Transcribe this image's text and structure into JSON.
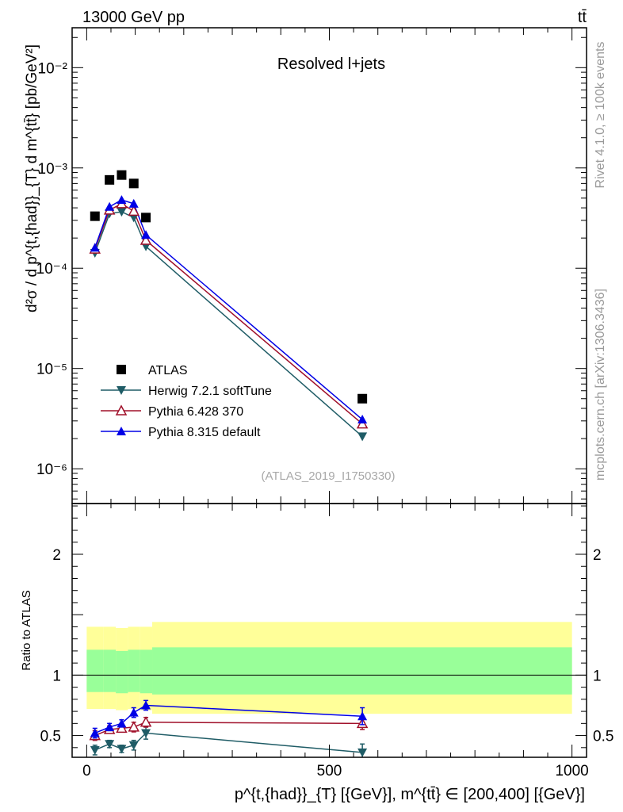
{
  "header": {
    "energy_label": "13000 GeV pp",
    "process_label": "tt̄",
    "plot_title": "Resolved l+jets",
    "analysis_id": "(ATLAS_2019_I1750330)",
    "side_label_top": "Rivet 4.1.0, ≥ 100k events",
    "side_label_bottom": "mcplots.cern.ch [arXiv:1306.3436]"
  },
  "chart_data": {
    "type": "line",
    "x_range": [
      -30,
      1030
    ],
    "top_panel": {
      "y_scale": "log",
      "y_range": [
        4.5e-07,
        0.025
      ],
      "ylabel": "d²σ / d p^{t,{had}}_{T} d m^{tt̄} [pb/GeV²]",
      "ytick_values": [
        1e-06,
        1e-05,
        0.0001,
        0.001,
        0.01
      ],
      "ytick_labels": [
        "10⁻⁶",
        "10⁻⁵",
        "10⁻⁴",
        "10⁻³",
        "10⁻²"
      ],
      "series": [
        {
          "name": "ATLAS",
          "color": "#000000",
          "marker": "square",
          "x": [
            17,
            47,
            72,
            97,
            122,
            568
          ],
          "y": [
            0.00033,
            0.00076,
            0.00085,
            0.0007,
            0.00032,
            5e-06
          ]
        },
        {
          "name": "Herwig 7.2.1 softTune",
          "color": "#1f5c66",
          "marker": "triangle-down",
          "x": [
            17,
            47,
            72,
            97,
            122,
            568
          ],
          "y": [
            0.000142,
            0.00035,
            0.000365,
            0.00032,
            0.000165,
            2.1e-06
          ]
        },
        {
          "name": "Pythia 6.428 370",
          "color": "#a0102a",
          "marker": "triangle-open",
          "x": [
            17,
            47,
            72,
            97,
            122,
            568
          ],
          "y": [
            0.000155,
            0.00038,
            0.00044,
            0.00037,
            0.00019,
            2.8e-06
          ]
        },
        {
          "name": "Pythia 8.315 default",
          "color": "#0000e6",
          "marker": "triangle-up",
          "x": [
            17,
            47,
            72,
            97,
            122,
            568
          ],
          "y": [
            0.00016,
            0.00041,
            0.00048,
            0.00044,
            0.000215,
            3.1e-06
          ]
        }
      ]
    },
    "ratio_panel": {
      "ylabel": "Ratio to ATLAS",
      "y_range": [
        0.32,
        2.42
      ],
      "ytick_values": [
        0.5,
        1,
        2
      ],
      "ytick_labels": [
        "0.5",
        "1",
        "2"
      ],
      "reference_line": 1,
      "bands": {
        "bin_edges": [
          0,
          35,
          60,
          85,
          110,
          135,
          1000
        ],
        "outer": {
          "color": "#ffff99",
          "low": [
            0.72,
            0.72,
            0.71,
            0.72,
            0.71,
            0.68
          ],
          "high": [
            1.4,
            1.4,
            1.39,
            1.4,
            1.4,
            1.44
          ]
        },
        "inner": {
          "color": "#99ff99",
          "low": [
            0.86,
            0.86,
            0.85,
            0.86,
            0.85,
            0.84
          ],
          "high": [
            1.21,
            1.21,
            1.2,
            1.21,
            1.21,
            1.23
          ]
        }
      },
      "series": [
        {
          "name": "Herwig 7.2.1 softTune",
          "x": [
            17,
            47,
            72,
            97,
            122,
            568
          ],
          "y": [
            0.38,
            0.43,
            0.39,
            0.42,
            0.52,
            0.36
          ],
          "err": [
            0.04,
            0.03,
            0.03,
            0.04,
            0.05,
            0.07
          ]
        },
        {
          "name": "Pythia 6.428 370",
          "x": [
            17,
            47,
            72,
            97,
            122,
            568
          ],
          "y": [
            0.5,
            0.55,
            0.56,
            0.57,
            0.61,
            0.6
          ],
          "err": [
            0.04,
            0.03,
            0.03,
            0.04,
            0.04,
            0.05
          ]
        },
        {
          "name": "Pythia 8.315 default",
          "x": [
            17,
            47,
            72,
            97,
            122,
            568
          ],
          "y": [
            0.52,
            0.57,
            0.6,
            0.69,
            0.75,
            0.66
          ],
          "err": [
            0.04,
            0.03,
            0.03,
            0.04,
            0.04,
            0.07
          ]
        }
      ]
    },
    "xtick_values": [
      0,
      500,
      1000
    ],
    "xtick_labels": [
      "0",
      "500",
      "1000"
    ],
    "xlabel": "p^{t,{had}}_{T} [{GeV}], m^{tt̄} ∈ [200,400] [{GeV}]",
    "legend_position": "center-left"
  }
}
